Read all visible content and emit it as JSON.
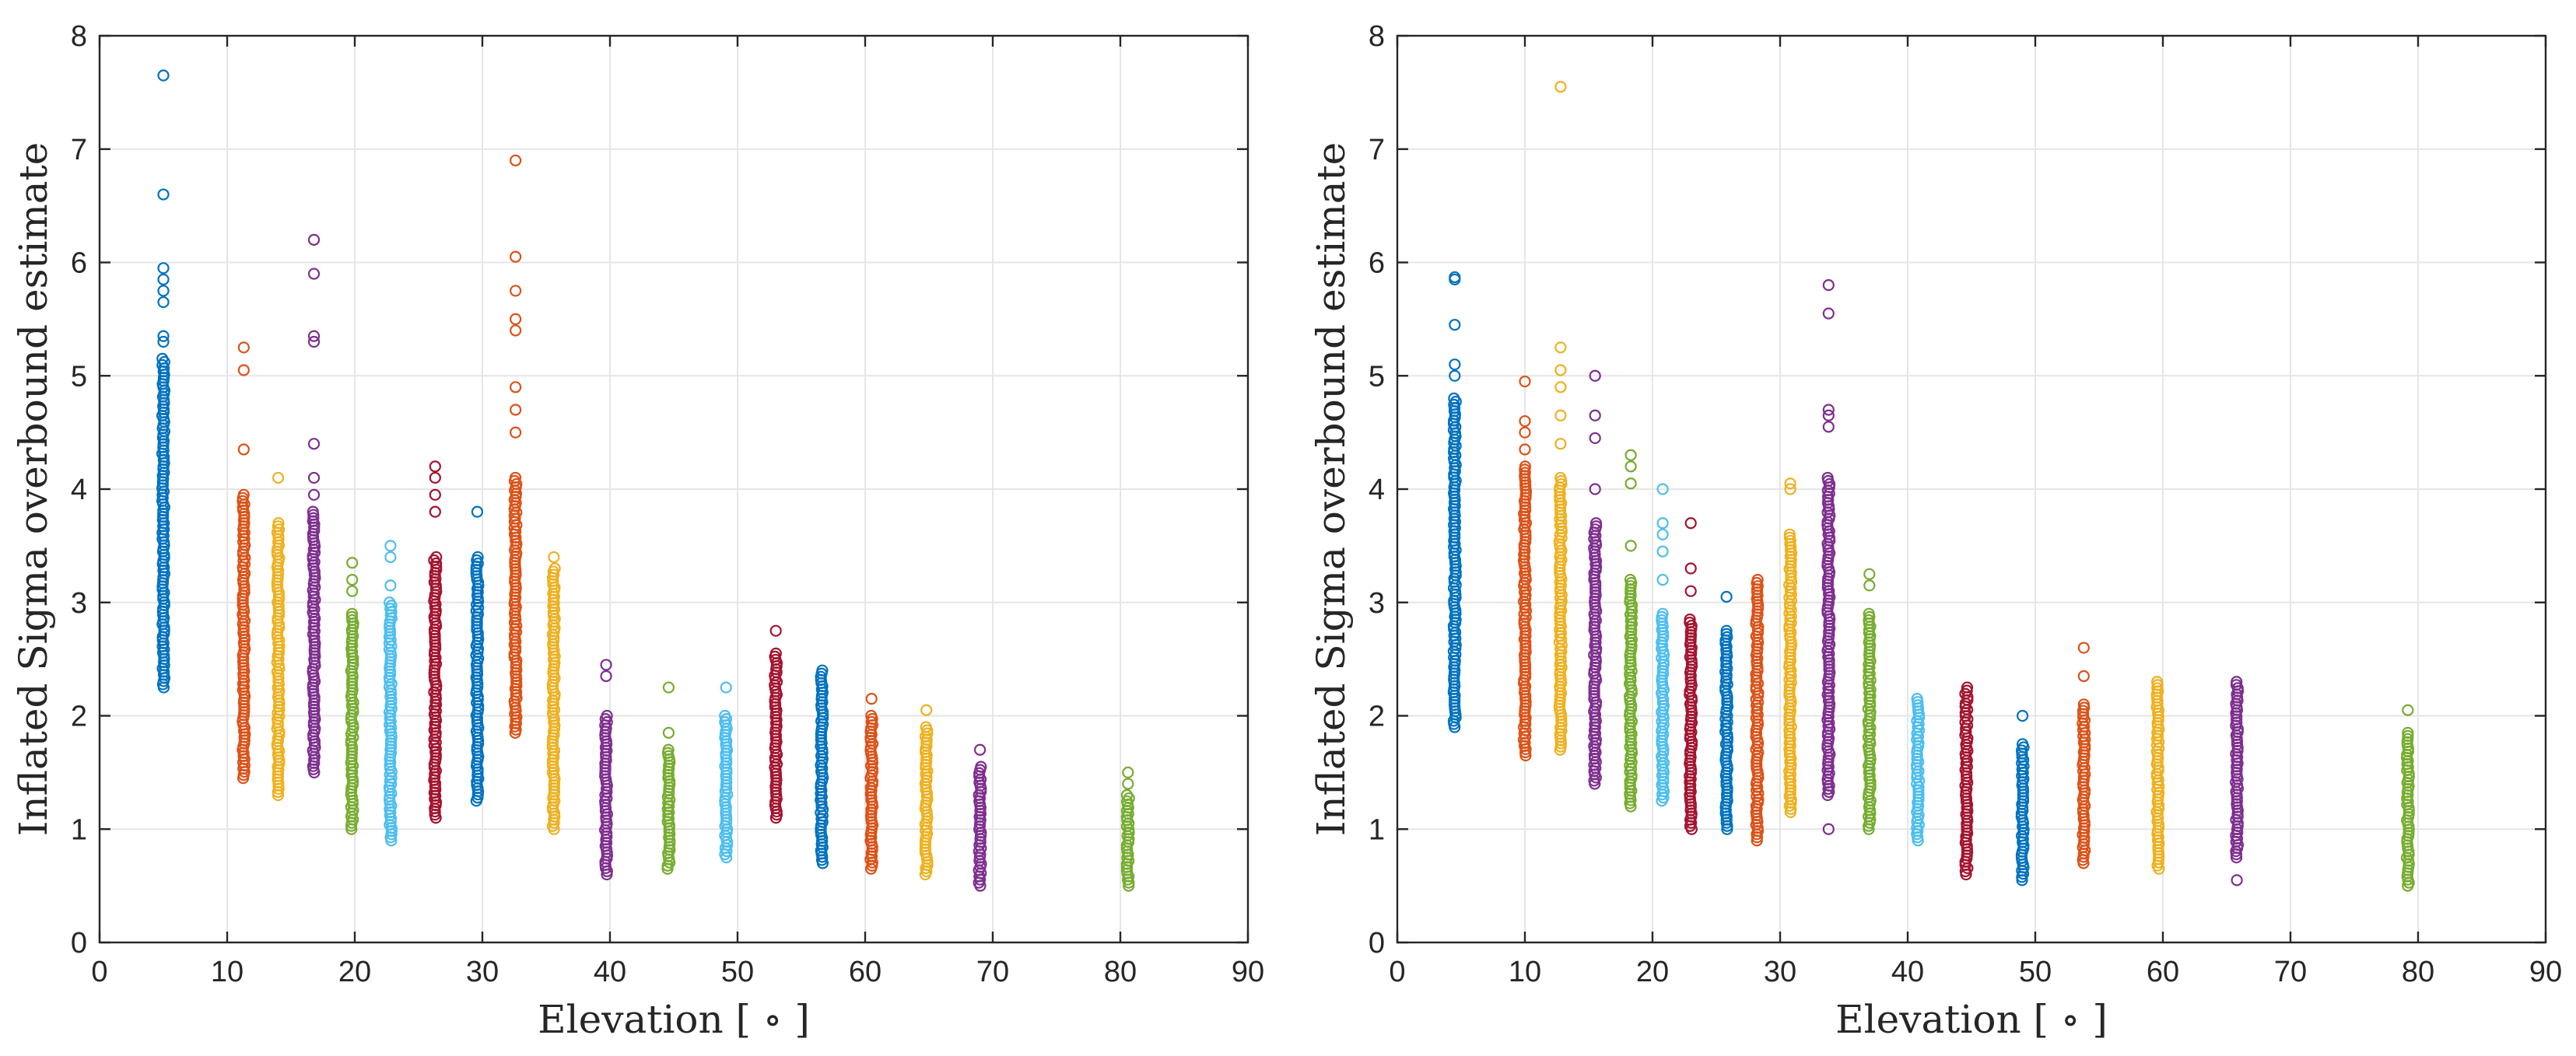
{
  "palette": [
    "#0072BD",
    "#D95319",
    "#EDB120",
    "#7E2F8E",
    "#77AC30",
    "#4DBEEE",
    "#A2142F"
  ],
  "chart_data": [
    {
      "type": "scatter",
      "title": "",
      "xlabel": "Elevation [ ∘ ]",
      "ylabel": "Inflated Sigma overbound estimate",
      "xlim": [
        0,
        90
      ],
      "ylim": [
        0,
        8
      ],
      "xticks": [
        "0",
        "10",
        "20",
        "30",
        "40",
        "50",
        "60",
        "70",
        "80",
        "90"
      ],
      "yticks": [
        "0",
        "1",
        "2",
        "3",
        "4",
        "5",
        "6",
        "7",
        "8"
      ],
      "grid": true,
      "marker": "open-circle",
      "series": [
        {
          "x": 5.0,
          "min": 2.25,
          "max": 5.15,
          "outliers": [
            5.3,
            5.35,
            5.65,
            5.75,
            5.85,
            5.95,
            6.6,
            7.65
          ]
        },
        {
          "x": 11.3,
          "min": 1.45,
          "max": 3.95,
          "outliers": [
            4.35,
            5.05,
            5.25
          ]
        },
        {
          "x": 14.0,
          "min": 1.3,
          "max": 3.7,
          "outliers": [
            4.1
          ]
        },
        {
          "x": 16.8,
          "min": 1.5,
          "max": 3.8,
          "outliers": [
            3.95,
            4.1,
            4.4,
            5.3,
            5.35,
            5.9,
            6.2
          ]
        },
        {
          "x": 19.8,
          "min": 1.0,
          "max": 2.9,
          "outliers": [
            3.1,
            3.2,
            3.35
          ]
        },
        {
          "x": 22.8,
          "min": 0.9,
          "max": 3.0,
          "outliers": [
            3.15,
            3.4,
            3.5
          ]
        },
        {
          "x": 26.3,
          "min": 1.1,
          "max": 3.4,
          "outliers": [
            3.8,
            3.95,
            4.1,
            4.2
          ]
        },
        {
          "x": 29.6,
          "min": 1.25,
          "max": 3.4,
          "outliers": [
            3.8
          ]
        },
        {
          "x": 32.6,
          "min": 1.85,
          "max": 4.1,
          "outliers": [
            4.5,
            4.7,
            4.9,
            5.4,
            5.5,
            5.75,
            6.05,
            6.9
          ]
        },
        {
          "x": 35.6,
          "min": 1.0,
          "max": 3.3,
          "outliers": [
            3.4
          ]
        },
        {
          "x": 39.7,
          "min": 0.6,
          "max": 2.0,
          "outliers": [
            2.35,
            2.45
          ]
        },
        {
          "x": 44.6,
          "min": 0.65,
          "max": 1.7,
          "outliers": [
            1.85,
            2.25
          ]
        },
        {
          "x": 49.1,
          "min": 0.75,
          "max": 2.0,
          "outliers": [
            2.25
          ]
        },
        {
          "x": 53.0,
          "min": 1.1,
          "max": 2.55,
          "outliers": [
            2.75
          ]
        },
        {
          "x": 56.6,
          "min": 0.7,
          "max": 2.4,
          "outliers": []
        },
        {
          "x": 60.5,
          "min": 0.65,
          "max": 2.0,
          "outliers": [
            2.15
          ]
        },
        {
          "x": 64.8,
          "min": 0.6,
          "max": 1.9,
          "outliers": [
            2.05
          ]
        },
        {
          "x": 69.0,
          "min": 0.5,
          "max": 1.55,
          "outliers": [
            1.7
          ]
        },
        {
          "x": 80.6,
          "min": 0.5,
          "max": 1.3,
          "outliers": [
            1.4,
            1.5
          ]
        }
      ]
    },
    {
      "type": "scatter",
      "title": "",
      "xlabel": "Elevation [ ∘ ]",
      "ylabel": "Inflated Sigma overbound estimate",
      "xlim": [
        0,
        90
      ],
      "ylim": [
        0,
        8
      ],
      "xticks": [
        "0",
        "10",
        "20",
        "30",
        "40",
        "50",
        "60",
        "70",
        "80",
        "90"
      ],
      "yticks": [
        "0",
        "1",
        "2",
        "3",
        "4",
        "5",
        "6",
        "7",
        "8"
      ],
      "grid": true,
      "marker": "open-circle",
      "series": [
        {
          "x": 4.5,
          "min": 1.9,
          "max": 4.8,
          "outliers": [
            5.0,
            5.1,
            5.45,
            5.85,
            5.87
          ]
        },
        {
          "x": 10.0,
          "min": 1.65,
          "max": 4.2,
          "outliers": [
            4.35,
            4.5,
            4.6,
            4.95
          ]
        },
        {
          "x": 12.8,
          "min": 1.7,
          "max": 4.1,
          "outliers": [
            4.4,
            4.65,
            4.9,
            5.05,
            5.25,
            7.55
          ]
        },
        {
          "x": 15.5,
          "min": 1.4,
          "max": 3.7,
          "outliers": [
            4.0,
            4.45,
            4.65,
            5.0
          ]
        },
        {
          "x": 18.3,
          "min": 1.2,
          "max": 3.2,
          "outliers": [
            3.5,
            4.05,
            4.2,
            4.3
          ]
        },
        {
          "x": 20.8,
          "min": 1.25,
          "max": 2.9,
          "outliers": [
            3.2,
            3.45,
            3.6,
            3.7,
            4.0
          ]
        },
        {
          "x": 23.0,
          "min": 1.0,
          "max": 2.85,
          "outliers": [
            3.1,
            3.3,
            3.7
          ]
        },
        {
          "x": 25.8,
          "min": 1.0,
          "max": 2.75,
          "outliers": [
            3.05
          ]
        },
        {
          "x": 28.2,
          "min": 0.9,
          "max": 3.2,
          "outliers": []
        },
        {
          "x": 30.8,
          "min": 1.15,
          "max": 3.6,
          "outliers": [
            4.0,
            4.05
          ]
        },
        {
          "x": 33.8,
          "min": 1.3,
          "max": 4.1,
          "outliers": [
            1.0,
            4.55,
            4.65,
            4.7,
            5.55,
            5.8
          ]
        },
        {
          "x": 37.0,
          "min": 1.0,
          "max": 2.9,
          "outliers": [
            3.15,
            3.25
          ]
        },
        {
          "x": 40.8,
          "min": 0.9,
          "max": 2.15,
          "outliers": []
        },
        {
          "x": 44.6,
          "min": 0.6,
          "max": 2.25,
          "outliers": []
        },
        {
          "x": 49.0,
          "min": 0.55,
          "max": 1.75,
          "outliers": [
            2.0
          ]
        },
        {
          "x": 53.8,
          "min": 0.7,
          "max": 2.1,
          "outliers": [
            2.35,
            2.6
          ]
        },
        {
          "x": 59.6,
          "min": 0.65,
          "max": 2.3,
          "outliers": []
        },
        {
          "x": 65.8,
          "min": 0.75,
          "max": 2.3,
          "outliers": [
            0.55
          ]
        },
        {
          "x": 79.2,
          "min": 0.5,
          "max": 1.85,
          "outliers": [
            2.05
          ]
        }
      ]
    }
  ]
}
